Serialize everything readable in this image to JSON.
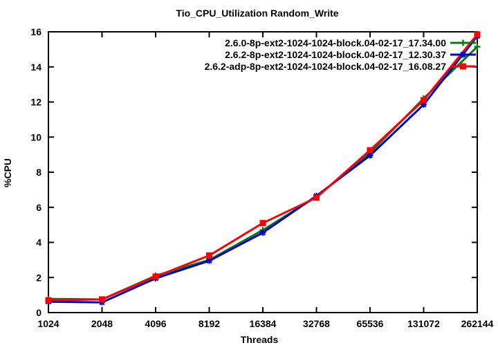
{
  "title": "Tio_CPU_Utilization Random_Write",
  "chart_data": {
    "type": "line",
    "title": "Tio_CPU_Utilization Random_Write",
    "xlabel": "Threads",
    "ylabel": "%CPU",
    "x_scale": "log2-categorical",
    "categories": [
      1024,
      2048,
      4096,
      8192,
      16384,
      32768,
      65536,
      131072,
      262144
    ],
    "x_tick_labels": [
      "1024",
      "2048",
      "4096",
      "8192",
      "16384",
      "32768",
      "65536",
      "131072",
      "262144"
    ],
    "ylim": [
      0,
      16
    ],
    "y_ticks": [
      0,
      2,
      4,
      6,
      8,
      10,
      12,
      14,
      16
    ],
    "grid": false,
    "legend_position": "top-right-inside",
    "axis_color": "#000000",
    "series": [
      {
        "name": "2.6.0-8p-ext2-1024-1024-block.04-02-17_17.34.00",
        "color": "#008000",
        "marker": "plus",
        "values": [
          0.78,
          0.75,
          2.1,
          3.0,
          4.7,
          6.6,
          9.1,
          12.2,
          15.15
        ]
      },
      {
        "name": "2.6.2-8p-ext2-1024-1024-block.04-02-17_12.30.37",
        "color": "#0000CD",
        "marker": "asterisk",
        "values": [
          0.62,
          0.58,
          1.95,
          2.95,
          4.55,
          6.65,
          8.95,
          11.85,
          15.75
        ]
      },
      {
        "name": "2.6.2-adp-8p-ext2-1024-1024-block.04-02-17_16.08.27",
        "color": "#FF0000",
        "marker": "filled-square",
        "values": [
          0.7,
          0.75,
          2.05,
          3.25,
          5.1,
          6.55,
          9.25,
          12.1,
          15.85
        ]
      }
    ]
  }
}
